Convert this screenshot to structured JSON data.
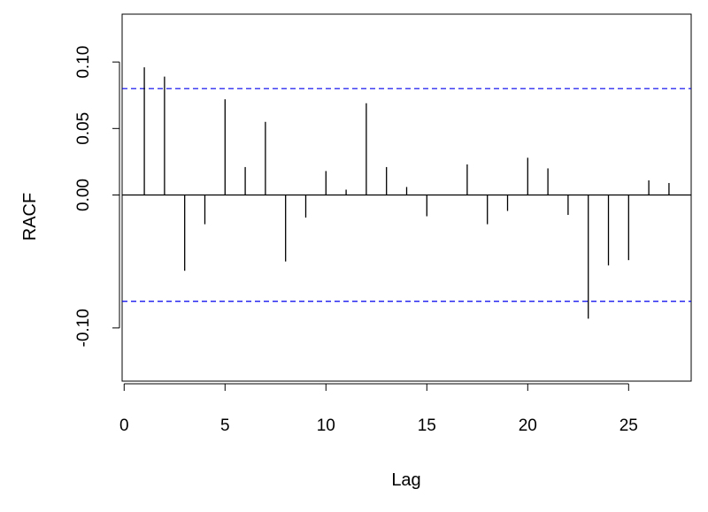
{
  "chart_data": {
    "type": "bar",
    "xlabel": "Lag",
    "ylabel": "RACF",
    "xlim": [
      -0.1,
      28.1
    ],
    "ylim": [
      -0.14,
      0.136
    ],
    "x_ticks": [
      0,
      5,
      10,
      15,
      20,
      25
    ],
    "x_tick_labels": [
      "0",
      "5",
      "10",
      "15",
      "20",
      "25"
    ],
    "y_ticks": [
      -0.1,
      0.0,
      0.05,
      0.1
    ],
    "y_tick_labels": [
      "-0.10",
      "0.00",
      "0.05",
      "0.10"
    ],
    "confidence_limits": [
      0.08,
      -0.08
    ],
    "series": [
      {
        "lags": [
          1,
          2,
          3,
          4,
          5,
          6,
          7,
          8,
          9,
          10,
          11,
          12,
          13,
          14,
          15,
          16,
          17,
          18,
          19,
          20,
          21,
          22,
          23,
          24,
          25,
          26,
          27
        ],
        "values": [
          0.096,
          0.089,
          -0.057,
          -0.022,
          0.072,
          0.021,
          0.055,
          -0.05,
          -0.017,
          0.018,
          0.004,
          0.069,
          0.021,
          0.006,
          -0.016,
          0.0,
          0.023,
          -0.022,
          -0.012,
          0.028,
          0.02,
          -0.015,
          -0.093,
          -0.053,
          -0.049,
          0.011,
          0.009
        ]
      }
    ],
    "grid": false,
    "colors": {
      "bars": "#000000",
      "limits": "#0000ee",
      "frame": "#000000"
    }
  }
}
